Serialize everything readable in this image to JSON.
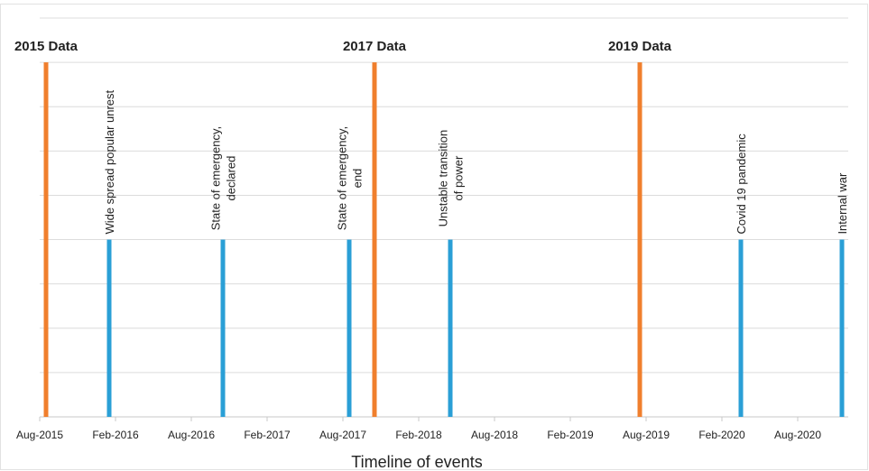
{
  "chart_data": {
    "type": "timeline",
    "x_label": "Timeline of events",
    "xlim": [
      "2015-08",
      "2020-12"
    ],
    "xticks": [
      {
        "value": "2015-08",
        "label": "Aug-2015"
      },
      {
        "value": "2016-02",
        "label": "Feb-2016"
      },
      {
        "value": "2016-08",
        "label": "Aug-2016"
      },
      {
        "value": "2017-02",
        "label": "Feb-2017"
      },
      {
        "value": "2017-08",
        "label": "Aug-2017"
      },
      {
        "value": "2018-02",
        "label": "Feb-2018"
      },
      {
        "value": "2018-08",
        "label": "Aug-2018"
      },
      {
        "value": "2019-02",
        "label": "Feb-2019"
      },
      {
        "value": "2019-08",
        "label": "Aug-2019"
      },
      {
        "value": "2020-02",
        "label": "Feb-2020"
      },
      {
        "value": "2020-08",
        "label": "Aug-2020"
      }
    ],
    "ylim": [
      0,
      9
    ],
    "yticks": [
      0,
      1,
      2,
      3,
      4,
      5,
      6,
      7,
      8,
      9
    ],
    "grid": true,
    "series": [
      {
        "color": "#f07f2d",
        "label_position": "top",
        "x": [
          "2015-08",
          "2017-10",
          "2019-07"
        ],
        "values": [
          8,
          8,
          8
        ],
        "labels": [
          [
            "2015 Data"
          ],
          [
            "2017 Data"
          ],
          [
            "2019 Data"
          ]
        ]
      },
      {
        "color": "#2a9fd6",
        "label_position": "rotated",
        "x": [
          "2016-01",
          "2016-10",
          "2017-08",
          "2018-04",
          "2020-03",
          "2020-11"
        ],
        "values": [
          4,
          4,
          4,
          4,
          4,
          4
        ],
        "labels": [
          [
            "Wide spread popular unrest"
          ],
          [
            "State of emergency,",
            "declared"
          ],
          [
            "State of emergency,",
            "end"
          ],
          [
            "Unstable transition",
            "of power"
          ],
          [
            "Covid 19 pandemic"
          ],
          [
            "Internal war"
          ]
        ]
      }
    ]
  }
}
